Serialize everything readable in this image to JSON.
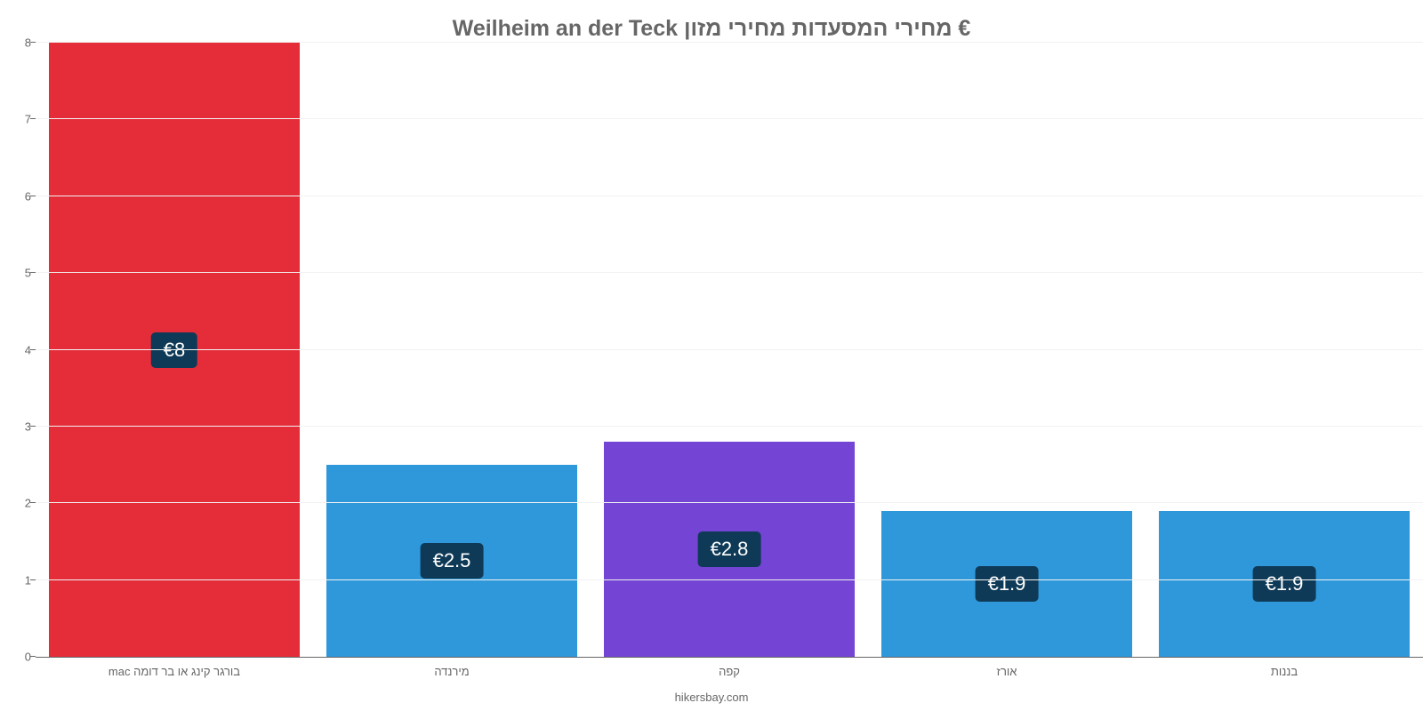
{
  "chart": {
    "type": "bar",
    "title": "€ מחירי המסעדות מחירי מזון Weilheim an der Teck",
    "title_fontsize": 25,
    "title_color": "#666666",
    "footer": "hikersbay.com",
    "footer_fontsize": 13,
    "footer_color": "#666666",
    "background_color": "#ffffff",
    "grid_color": "#f2f2f2",
    "axis_color": "#666666",
    "ylim": [
      0,
      8
    ],
    "ytick_step": 1,
    "bar_tooltip_bg": "#0f3a57",
    "bar_tooltip_color": "#ffffff",
    "categories": [
      {
        "label": "בורגר קינג או בר דומה mac",
        "value": 8.0,
        "display": "€8",
        "color": "#e52d39"
      },
      {
        "label": "מירנדה",
        "value": 2.5,
        "display": "€2.5",
        "color": "#2f98da"
      },
      {
        "label": "קפה",
        "value": 2.8,
        "display": "€2.8",
        "color": "#7444d4"
      },
      {
        "label": "אורז",
        "value": 1.9,
        "display": "€1.9",
        "color": "#2f98da"
      },
      {
        "label": "בננות",
        "value": 1.9,
        "display": "€1.9",
        "color": "#2f98da"
      }
    ]
  }
}
